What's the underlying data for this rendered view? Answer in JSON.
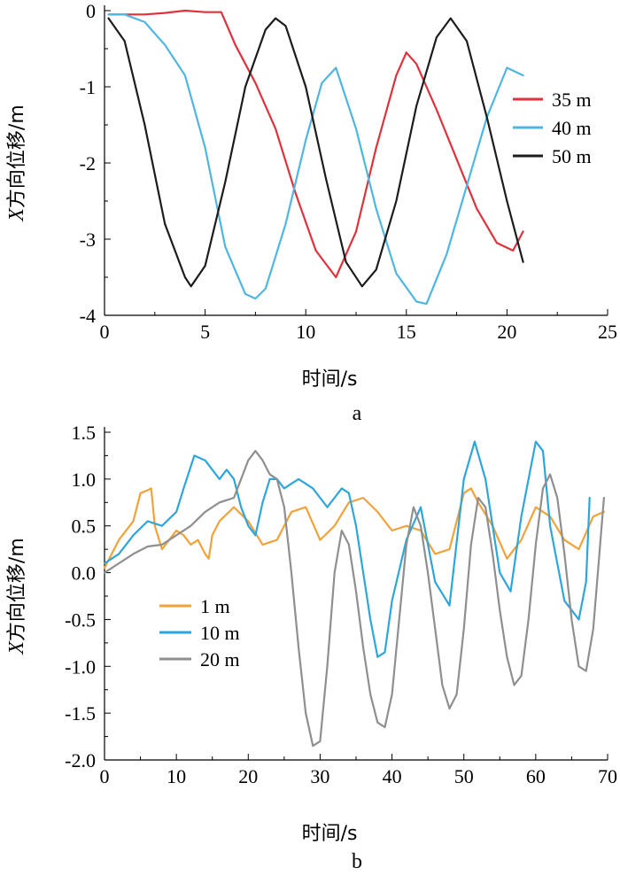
{
  "chart_data": [
    {
      "panel": "a",
      "type": "line",
      "xlabel": "时间/s",
      "ylabel": "X方向位移/m",
      "ylabel_var": "X",
      "ylabel_rest": "方向位移/m",
      "xlim": [
        0,
        25
      ],
      "ylim": [
        -4,
        0
      ],
      "xticks": [
        0,
        5,
        10,
        15,
        20,
        25
      ],
      "yticks": [
        0,
        -1,
        -2,
        -3,
        -4
      ],
      "legend_position": "right",
      "series": [
        {
          "name": "35 m",
          "color": "#e0323c",
          "x": [
            0.2,
            1,
            2,
            3,
            4,
            5,
            5.8,
            6.5,
            7.5,
            8.5,
            9.5,
            10.5,
            11.5,
            12.5,
            13.5,
            14.5,
            15,
            15.5,
            16.5,
            17.5,
            18.5,
            19.5,
            20.3,
            20.8
          ],
          "y": [
            -0.05,
            -0.05,
            -0.05,
            -0.03,
            0,
            -0.02,
            -0.02,
            -0.45,
            -0.95,
            -1.55,
            -2.4,
            -3.15,
            -3.5,
            -2.9,
            -1.8,
            -0.85,
            -0.55,
            -0.7,
            -1.3,
            -1.95,
            -2.6,
            -3.05,
            -3.15,
            -2.9
          ]
        },
        {
          "name": "40 m",
          "color": "#4fb6e2",
          "x": [
            0.2,
            1,
            2,
            3,
            4,
            5,
            6,
            7,
            7.5,
            8,
            9,
            10,
            10.8,
            11.5,
            12.5,
            13.5,
            14.5,
            15.5,
            16,
            17,
            18,
            19,
            20,
            20.8
          ],
          "y": [
            -0.05,
            -0.05,
            -0.15,
            -0.45,
            -0.85,
            -1.8,
            -3.1,
            -3.72,
            -3.78,
            -3.65,
            -2.8,
            -1.7,
            -0.95,
            -0.75,
            -1.55,
            -2.6,
            -3.45,
            -3.82,
            -3.85,
            -3.2,
            -2.3,
            -1.4,
            -0.75,
            -0.85
          ]
        },
        {
          "name": "50 m",
          "color": "#1c1c1c",
          "x": [
            0.2,
            1,
            2,
            3,
            4,
            4.3,
            5,
            6,
            7,
            8,
            8.5,
            9,
            10,
            11,
            12,
            12.8,
            13.5,
            14.5,
            15.5,
            16.5,
            17.2,
            18,
            19,
            20,
            20.8
          ],
          "y": [
            -0.1,
            -0.4,
            -1.5,
            -2.8,
            -3.5,
            -3.62,
            -3.35,
            -2.25,
            -1.0,
            -0.25,
            -0.1,
            -0.2,
            -1.0,
            -2.2,
            -3.3,
            -3.62,
            -3.4,
            -2.5,
            -1.25,
            -0.35,
            -0.1,
            -0.4,
            -1.4,
            -2.5,
            -3.3
          ]
        }
      ]
    },
    {
      "panel": "b",
      "type": "line",
      "xlabel": "时间/s",
      "ylabel": "X方向位移/m",
      "ylabel_var": "X",
      "ylabel_rest": "方向位移/m",
      "xlim": [
        0,
        70
      ],
      "ylim": [
        -2.0,
        1.5
      ],
      "xticks": [
        0,
        10,
        20,
        30,
        40,
        50,
        60,
        70
      ],
      "yticks": [
        1.5,
        1.0,
        0.5,
        0.0,
        -0.5,
        -1.0,
        -1.5,
        -2.0
      ],
      "ytick_labels": [
        "1.5",
        "1.0",
        "0.5",
        "0.0",
        "-0.5",
        "-1.0",
        "-1.5",
        "-2.0"
      ],
      "legend_position": "left",
      "series": [
        {
          "name": "1 m",
          "color": "#f2a23a",
          "x": [
            0,
            2,
            4,
            5,
            6,
            6.5,
            7,
            8,
            9,
            10,
            11,
            12,
            13,
            14,
            14.5,
            15,
            16,
            18,
            20,
            22,
            24,
            26,
            28,
            30,
            32,
            34,
            36,
            38,
            40,
            42,
            44,
            46,
            48,
            50,
            51,
            52,
            54,
            56,
            58,
            60,
            62,
            64,
            66,
            68,
            69.5
          ],
          "y": [
            0.05,
            0.35,
            0.55,
            0.85,
            0.88,
            0.9,
            0.5,
            0.25,
            0.35,
            0.45,
            0.4,
            0.3,
            0.35,
            0.2,
            0.15,
            0.4,
            0.55,
            0.7,
            0.55,
            0.3,
            0.35,
            0.65,
            0.7,
            0.35,
            0.5,
            0.75,
            0.8,
            0.65,
            0.45,
            0.5,
            0.45,
            0.2,
            0.25,
            0.85,
            0.9,
            0.75,
            0.5,
            0.15,
            0.35,
            0.7,
            0.6,
            0.35,
            0.25,
            0.6,
            0.65
          ]
        },
        {
          "name": "10 m",
          "color": "#2ea6dc",
          "x": [
            0,
            2,
            4,
            6,
            8,
            10,
            11,
            12.5,
            14,
            15,
            16,
            17,
            18,
            19,
            20,
            21,
            22,
            23,
            24,
            25,
            26,
            27,
            28,
            29,
            30,
            31,
            32,
            33,
            34,
            35,
            36,
            37,
            38,
            39,
            40,
            42,
            44,
            46,
            48,
            50,
            51.5,
            53,
            55,
            56.5,
            58,
            60,
            61,
            62,
            64,
            66,
            67,
            67.5
          ],
          "y": [
            0.1,
            0.2,
            0.4,
            0.55,
            0.5,
            0.65,
            0.9,
            1.25,
            1.2,
            1.1,
            1.0,
            1.1,
            1.0,
            0.7,
            0.5,
            0.4,
            0.75,
            1.0,
            1.0,
            0.9,
            0.95,
            1.0,
            0.95,
            0.9,
            0.8,
            0.7,
            0.8,
            0.9,
            0.85,
            0.5,
            0.0,
            -0.5,
            -0.9,
            -0.85,
            -0.3,
            0.35,
            0.7,
            -0.1,
            -0.35,
            1.0,
            1.4,
            1.0,
            0.0,
            -0.2,
            0.6,
            1.4,
            1.3,
            0.5,
            -0.3,
            -0.5,
            -0.1,
            0.8
          ]
        },
        {
          "name": "20 m",
          "color": "#8f8f8f",
          "x": [
            0,
            2,
            4,
            6,
            8,
            10,
            12,
            14,
            16,
            18,
            19,
            20,
            21,
            22,
            23,
            24,
            25,
            26,
            27,
            28,
            29,
            30,
            31,
            32,
            33,
            34,
            35,
            36,
            37,
            38,
            39,
            40,
            41,
            42,
            43,
            44,
            45,
            46,
            47,
            48,
            49,
            50,
            51,
            52,
            53,
            54,
            55,
            56,
            57,
            58,
            59,
            60,
            61,
            62,
            63,
            64,
            65,
            66,
            67,
            68,
            69.5
          ],
          "y": [
            0.0,
            0.1,
            0.2,
            0.28,
            0.3,
            0.4,
            0.5,
            0.65,
            0.75,
            0.8,
            1.0,
            1.2,
            1.3,
            1.2,
            1.05,
            1.0,
            0.7,
            0.0,
            -0.8,
            -1.5,
            -1.85,
            -1.8,
            -1.0,
            0.0,
            0.45,
            0.3,
            -0.2,
            -0.8,
            -1.3,
            -1.6,
            -1.65,
            -1.3,
            -0.5,
            0.3,
            0.7,
            0.5,
            0.0,
            -0.6,
            -1.2,
            -1.45,
            -1.3,
            -0.6,
            0.3,
            0.8,
            0.7,
            0.2,
            -0.4,
            -0.9,
            -1.2,
            -1.1,
            -0.5,
            0.3,
            0.9,
            1.05,
            0.8,
            0.2,
            -0.5,
            -1.0,
            -1.05,
            -0.6,
            0.8
          ]
        }
      ]
    }
  ]
}
